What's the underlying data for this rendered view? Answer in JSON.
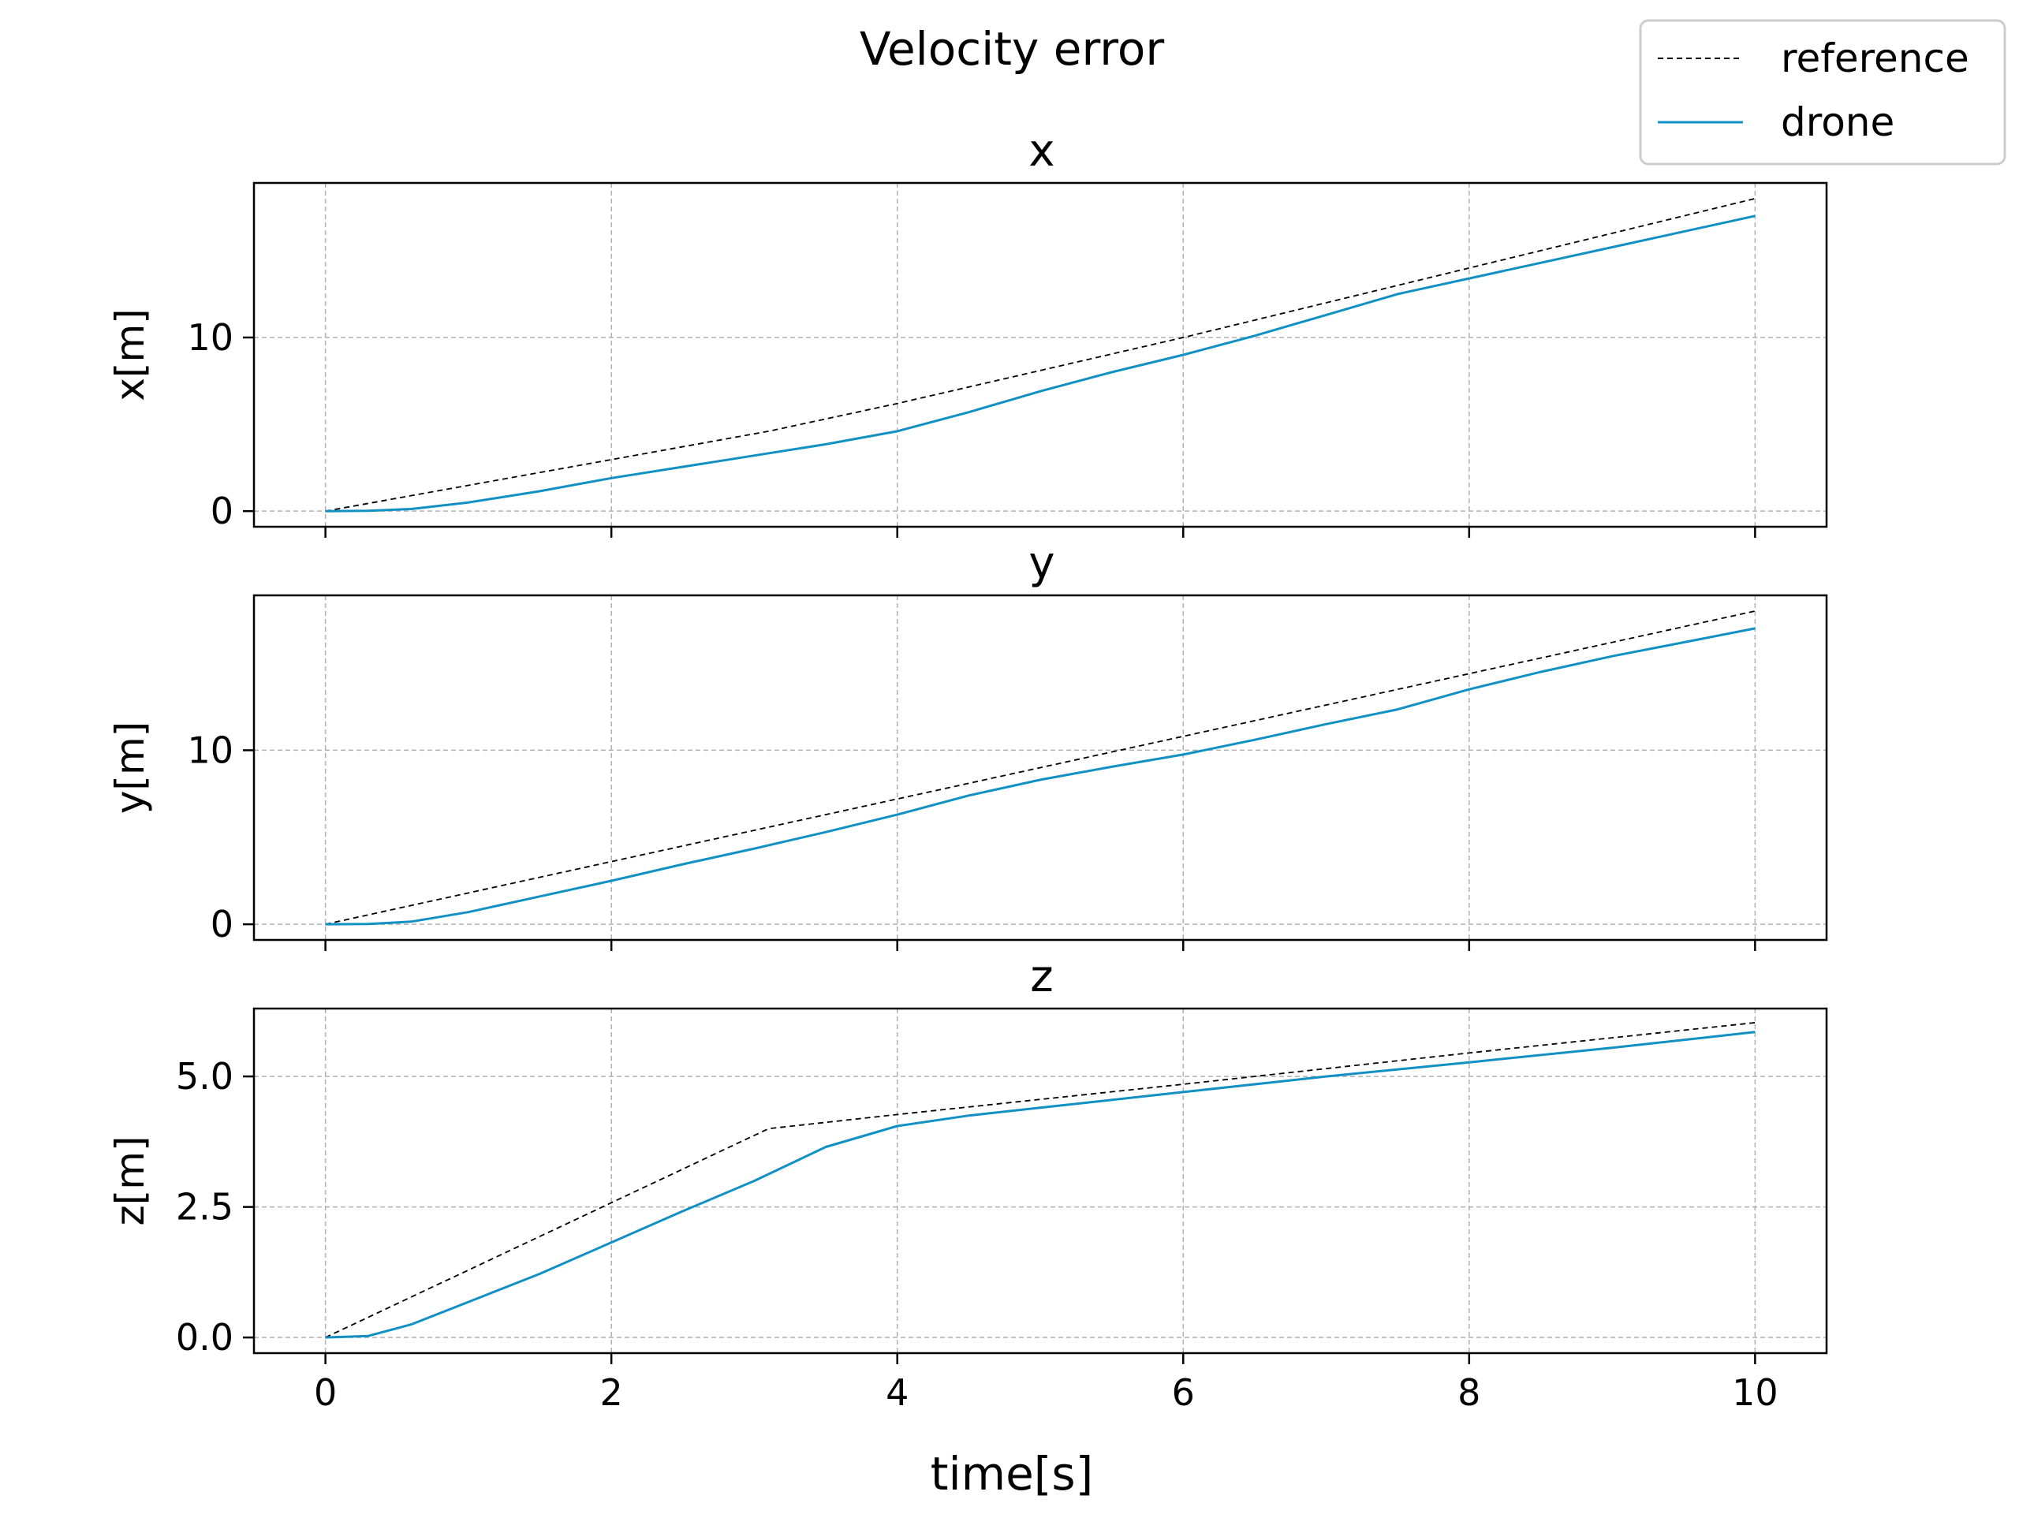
{
  "chart_data": {
    "type": "line",
    "title": "Velocity error",
    "xlabel": "time[s]",
    "xlim": [
      -0.5,
      10.5
    ],
    "xticks": [
      0,
      2,
      4,
      6,
      8,
      10
    ],
    "grid": true,
    "legend": {
      "placement": "top-right",
      "entries": [
        {
          "name": "reference",
          "style": "dashed",
          "color": "#000000"
        },
        {
          "name": "drone",
          "style": "solid",
          "color": "#1190c4"
        }
      ]
    },
    "subplots": [
      {
        "title": "x",
        "ylabel": "x[m]",
        "ylim": [
          -0.9,
          18.9
        ],
        "yticks": [
          0,
          10
        ],
        "ytick_labels": [
          "0",
          "10"
        ],
        "series": [
          {
            "name": "reference",
            "x": [
              0,
              3.1,
              4,
              6,
              8,
              10
            ],
            "y": [
              0,
              4.6,
              6.2,
              10.0,
              14.0,
              18.0
            ]
          },
          {
            "name": "drone",
            "x": [
              0,
              0.3,
              0.6,
              1,
              1.5,
              2,
              2.5,
              3,
              3.5,
              4,
              4.5,
              5,
              5.5,
              6,
              6.5,
              7,
              7.5,
              8,
              8.5,
              9,
              9.5,
              10
            ],
            "y": [
              0,
              0.02,
              0.12,
              0.5,
              1.15,
              1.9,
              2.55,
              3.2,
              3.85,
              4.6,
              5.7,
              6.9,
              8.0,
              9.0,
              10.1,
              11.3,
              12.5,
              13.4,
              14.3,
              15.2,
              16.1,
              17.0
            ]
          }
        ]
      },
      {
        "title": "y",
        "ylabel": "y[m]",
        "ylim": [
          -0.9,
          18.9
        ],
        "yticks": [
          0,
          10
        ],
        "ytick_labels": [
          "0",
          "10"
        ],
        "series": [
          {
            "name": "reference",
            "x": [
              0,
              10
            ],
            "y": [
              0,
              18.0
            ]
          },
          {
            "name": "drone",
            "x": [
              0,
              0.3,
              0.6,
              1,
              1.5,
              2,
              2.5,
              3,
              3.5,
              4,
              4.5,
              5,
              5.5,
              6,
              6.5,
              7,
              7.5,
              8,
              8.5,
              9,
              9.5,
              10
            ],
            "y": [
              0,
              0.02,
              0.15,
              0.7,
              1.6,
              2.5,
              3.45,
              4.35,
              5.3,
              6.3,
              7.4,
              8.3,
              9.05,
              9.75,
              10.6,
              11.5,
              12.35,
              13.5,
              14.5,
              15.4,
              16.2,
              17.0
            ]
          }
        ]
      },
      {
        "title": "z",
        "ylabel": "z[m]",
        "ylim": [
          -0.3,
          6.3
        ],
        "yticks": [
          0,
          2.5,
          5
        ],
        "ytick_labels": [
          "0.0",
          "2.5",
          "5.0"
        ],
        "series": [
          {
            "name": "reference",
            "x": [
              0,
              3.1,
              4,
              6,
              8,
              10
            ],
            "y": [
              0,
              4.0,
              4.27,
              4.85,
              5.45,
              6.03
            ]
          },
          {
            "name": "drone",
            "x": [
              0,
              0.3,
              0.6,
              1,
              1.5,
              2,
              2.5,
              3,
              3.5,
              4,
              4.5,
              5,
              6,
              7,
              8,
              9,
              10
            ],
            "y": [
              0,
              0.03,
              0.25,
              0.68,
              1.22,
              1.82,
              2.42,
              3.0,
              3.65,
              4.05,
              4.25,
              4.4,
              4.7,
              5.0,
              5.27,
              5.55,
              5.85
            ]
          }
        ]
      }
    ]
  }
}
